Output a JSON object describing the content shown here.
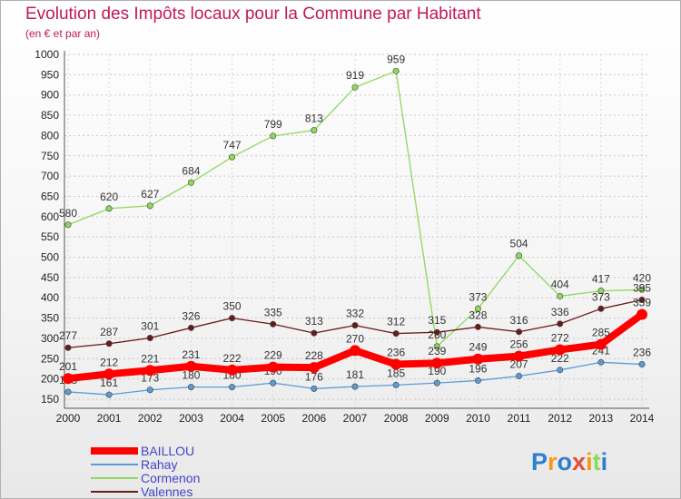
{
  "chart_data": {
    "type": "line",
    "title": "Evolution des Impôts locaux pour la Commune par Habitant",
    "subtitle": "(en € et par an)",
    "xlabel": "",
    "ylabel": "",
    "ylim": [
      150,
      1000
    ],
    "yticks": [
      150,
      200,
      250,
      300,
      350,
      400,
      450,
      500,
      550,
      600,
      650,
      700,
      750,
      800,
      850,
      900,
      950,
      1000
    ],
    "categories": [
      "2000",
      "2001",
      "2002",
      "2003",
      "2004",
      "2005",
      "2006",
      "2007",
      "2008",
      "2009",
      "2010",
      "2011",
      "2012",
      "2013",
      "2014"
    ],
    "series": [
      {
        "name": "BAILLOU",
        "color": "#ff0000",
        "values": [
          201,
          212,
          221,
          231,
          222,
          229,
          228,
          270,
          236,
          239,
          249,
          256,
          272,
          285,
          359
        ]
      },
      {
        "name": "Rahay",
        "color": "#5b9bd5",
        "values": [
          168,
          161,
          173,
          180,
          180,
          190,
          176,
          181,
          185,
          190,
          196,
          207,
          222,
          241,
          236
        ]
      },
      {
        "name": "Cormenon",
        "color": "#8ed85c",
        "values": [
          580,
          620,
          627,
          684,
          747,
          799,
          813,
          919,
          959,
          280,
          373,
          504,
          404,
          417,
          420
        ]
      },
      {
        "name": "Valennes",
        "color": "#6b1a1a",
        "values": [
          277,
          287,
          301,
          326,
          350,
          335,
          313,
          332,
          312,
          315,
          328,
          316,
          336,
          373,
          395
        ]
      }
    ],
    "legend": "bottom-left"
  },
  "watermark": "Proxiti"
}
